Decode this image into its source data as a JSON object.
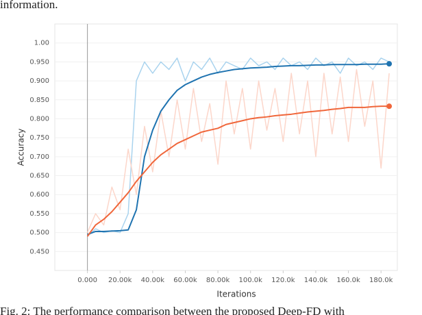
{
  "chart_data": {
    "type": "line",
    "text_above": "information.",
    "caption": "Fig. 2: The performance comparison between the proposed Deep-FD with",
    "xlabel": "Iterations",
    "ylabel": "Accuracy",
    "x": [
      0,
      5000,
      10000,
      15000,
      20000,
      25000,
      30000,
      35000,
      40000,
      45000,
      50000,
      55000,
      60000,
      65000,
      70000,
      75000,
      80000,
      85000,
      90000,
      95000,
      100000,
      105000,
      110000,
      115000,
      120000,
      125000,
      130000,
      135000,
      140000,
      145000,
      150000,
      155000,
      160000,
      165000,
      170000,
      175000,
      180000,
      185000
    ],
    "series": [
      {
        "color": "#a9d3ee",
        "values": [
          0.49,
          0.51,
          0.5,
          0.505,
          0.5,
          0.55,
          0.9,
          0.95,
          0.92,
          0.95,
          0.93,
          0.96,
          0.9,
          0.95,
          0.93,
          0.96,
          0.92,
          0.95,
          0.94,
          0.93,
          0.96,
          0.94,
          0.95,
          0.93,
          0.96,
          0.94,
          0.95,
          0.93,
          0.96,
          0.94,
          0.95,
          0.92,
          0.96,
          0.94,
          0.95,
          0.93,
          0.96,
          0.95
        ]
      },
      {
        "color": "#fcd6ca",
        "values": [
          0.5,
          0.55,
          0.52,
          0.62,
          0.56,
          0.72,
          0.6,
          0.78,
          0.66,
          0.82,
          0.7,
          0.85,
          0.72,
          0.88,
          0.74,
          0.84,
          0.68,
          0.9,
          0.76,
          0.88,
          0.72,
          0.9,
          0.77,
          0.88,
          0.74,
          0.92,
          0.76,
          0.9,
          0.7,
          0.92,
          0.76,
          0.91,
          0.74,
          0.93,
          0.78,
          0.9,
          0.67,
          0.92
        ]
      },
      {
        "color": "#1f73b0",
        "values": [
          0.495,
          0.503,
          0.503,
          0.504,
          0.505,
          0.507,
          0.56,
          0.7,
          0.77,
          0.82,
          0.85,
          0.875,
          0.89,
          0.9,
          0.91,
          0.917,
          0.922,
          0.926,
          0.93,
          0.932,
          0.934,
          0.935,
          0.936,
          0.938,
          0.939,
          0.94,
          0.94,
          0.941,
          0.942,
          0.942,
          0.943,
          0.943,
          0.943,
          0.943,
          0.944,
          0.944,
          0.944,
          0.945
        ]
      },
      {
        "color": "#f0663a",
        "values": [
          0.49,
          0.52,
          0.535,
          0.555,
          0.58,
          0.605,
          0.635,
          0.66,
          0.685,
          0.705,
          0.72,
          0.735,
          0.745,
          0.755,
          0.765,
          0.77,
          0.775,
          0.785,
          0.79,
          0.795,
          0.8,
          0.803,
          0.805,
          0.808,
          0.81,
          0.812,
          0.815,
          0.818,
          0.82,
          0.822,
          0.825,
          0.827,
          0.83,
          0.83,
          0.83,
          0.832,
          0.833,
          0.833
        ]
      }
    ],
    "xlim": [
      -20000,
      190000
    ],
    "ylim": [
      0.4,
      1.05
    ],
    "xticks": [
      {
        "value": 0,
        "label": "0.000"
      },
      {
        "value": 20000,
        "label": "20.00k"
      },
      {
        "value": 40000,
        "label": "40.00k"
      },
      {
        "value": 60000,
        "label": "60.00k"
      },
      {
        "value": 80000,
        "label": "80.00k"
      },
      {
        "value": 100000,
        "label": "100.0k"
      },
      {
        "value": 120000,
        "label": "120.0k"
      },
      {
        "value": 140000,
        "label": "140.0k"
      },
      {
        "value": 160000,
        "label": "160.0k"
      },
      {
        "value": 180000,
        "label": "180.0k"
      }
    ],
    "yticks": [
      {
        "value": 0.45,
        "label": "0.450"
      },
      {
        "value": 0.5,
        "label": "0.500"
      },
      {
        "value": 0.55,
        "label": "0.550"
      },
      {
        "value": 0.6,
        "label": "0.600"
      },
      {
        "value": 0.65,
        "label": "0.650"
      },
      {
        "value": 0.7,
        "label": "0.700"
      },
      {
        "value": 0.75,
        "label": "0.750"
      },
      {
        "value": 0.8,
        "label": "0.800"
      },
      {
        "value": 0.85,
        "label": "0.850"
      },
      {
        "value": 0.9,
        "label": "0.900"
      },
      {
        "value": 0.95,
        "label": "0.950"
      },
      {
        "value": 1.0,
        "label": "1.00"
      }
    ],
    "grid": true
  }
}
